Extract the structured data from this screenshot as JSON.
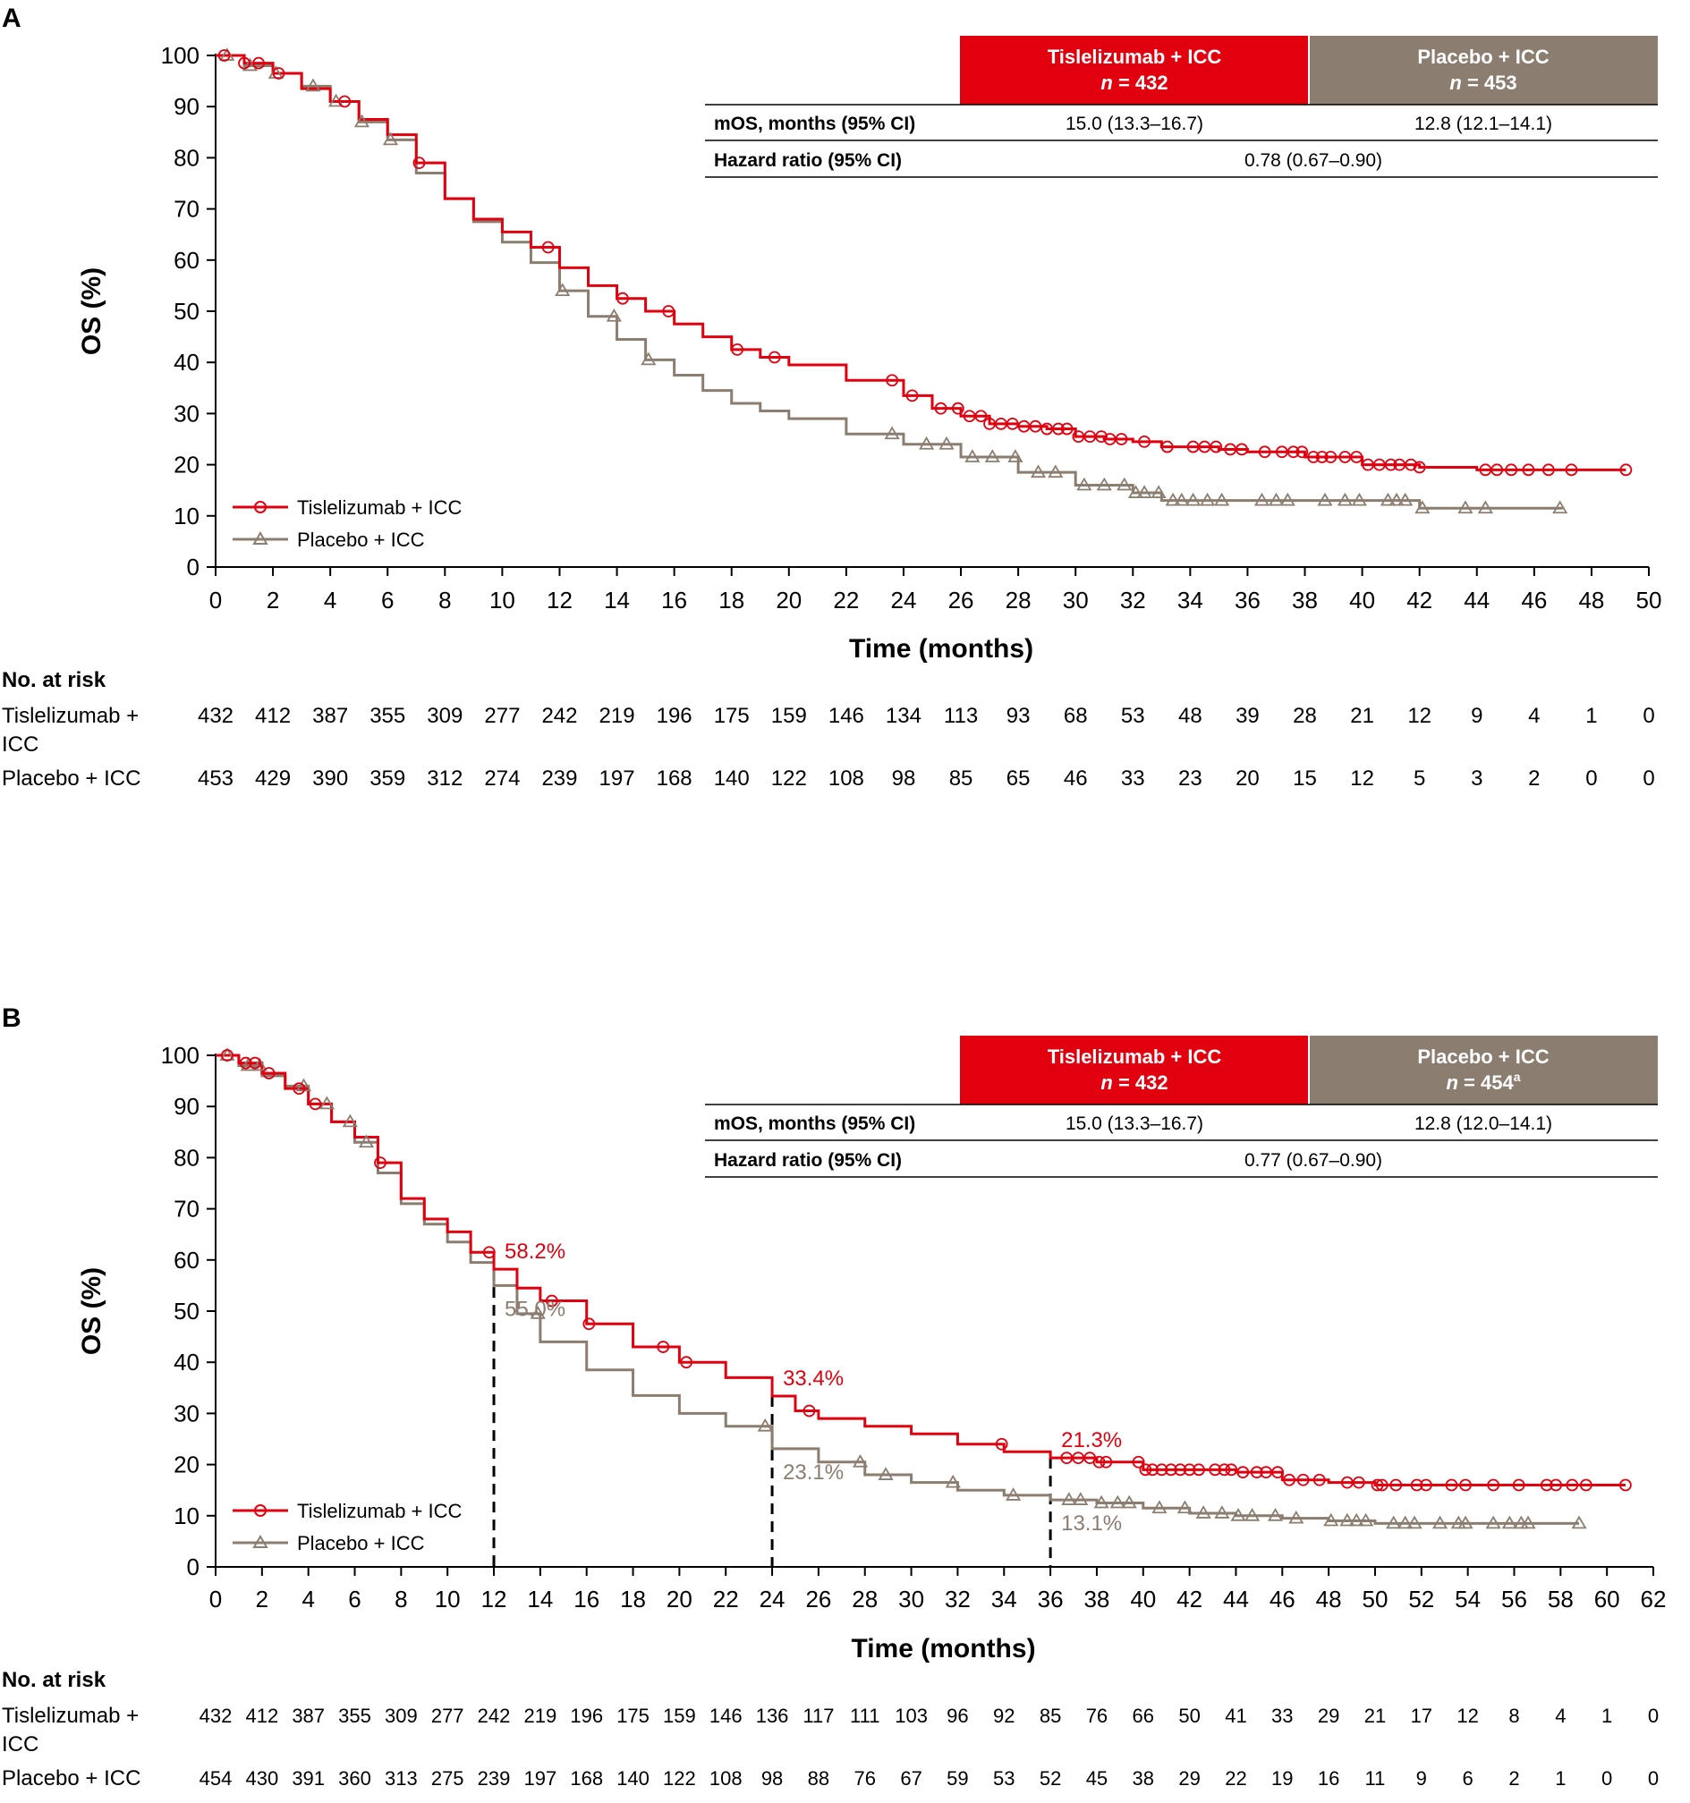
{
  "colors": {
    "tis": "#e2000f",
    "pla": "#8b7d6f",
    "axis": "#000000"
  },
  "panels": [
    {
      "panel_label": "A",
      "table": {
        "tis_header": "Tislelizumab + ICC",
        "tis_n_label": "n",
        "tis_n_value": " = 432",
        "tis_n_sup": "",
        "pla_header": "Placebo + ICC",
        "pla_n_label": "n",
        "pla_n_value": " = 453",
        "pla_n_sup": "",
        "mos_label": "mOS, months (95% CI)",
        "mos_tis": "15.0 (13.3–16.7)",
        "mos_pla": "12.8 (12.1–14.1)",
        "hr_label": "Hazard ratio (95% CI)",
        "hr_value": "0.78 (0.67–0.90)"
      },
      "legend": {
        "tis": "Tislelizumab + ICC",
        "pla": "Placebo + ICC"
      },
      "risk": {
        "title": "No. at risk",
        "tis_label_1": "Tislelizumab +",
        "tis_label_2": "ICC",
        "pla_label": "Placebo + ICC"
      }
    },
    {
      "panel_label": "B",
      "table": {
        "tis_header": "Tislelizumab + ICC",
        "tis_n_label": "n",
        "tis_n_value": " = 432",
        "tis_n_sup": "",
        "pla_header": "Placebo + ICC",
        "pla_n_label": "n",
        "pla_n_value": " = 454",
        "pla_n_sup": "a",
        "mos_label": "mOS, months (95% CI)",
        "mos_tis": "15.0 (13.3–16.7)",
        "mos_pla": "12.8 (12.0–14.1)",
        "hr_label": "Hazard ratio (95% CI)",
        "hr_value": "0.77 (0.67–0.90)"
      },
      "legend": {
        "tis": "Tislelizumab + ICC",
        "pla": "Placebo + ICC"
      },
      "risk": {
        "title": "No. at risk",
        "tis_label_1": "Tislelizumab +",
        "tis_label_2": "ICC",
        "pla_label": "Placebo + ICC"
      }
    }
  ],
  "chart_data": [
    {
      "type": "line",
      "title": "A",
      "xlabel": "Time (months)",
      "ylabel": "OS (%)",
      "xlim": [
        0,
        50
      ],
      "ylim": [
        0,
        100
      ],
      "xticks": [
        0,
        2,
        4,
        6,
        8,
        10,
        12,
        14,
        16,
        18,
        20,
        22,
        24,
        26,
        28,
        30,
        32,
        34,
        36,
        38,
        40,
        42,
        44,
        46,
        48,
        50
      ],
      "yticks": [
        0,
        10,
        20,
        30,
        40,
        50,
        60,
        70,
        80,
        90,
        100
      ],
      "series": [
        {
          "name": "Tislelizumab + ICC",
          "x": [
            0,
            1,
            2,
            3,
            4,
            5,
            6,
            7,
            8,
            9,
            10,
            11,
            12,
            13,
            14,
            15,
            16,
            17,
            18,
            19,
            20,
            22,
            24,
            25,
            26,
            27,
            28,
            29,
            30,
            31,
            32,
            33,
            34,
            35,
            36,
            38,
            40,
            42,
            44,
            46,
            48,
            49.2
          ],
          "y": [
            100,
            98.5,
            96.5,
            93.5,
            91,
            87.5,
            84.5,
            79,
            72,
            68,
            65.5,
            62.5,
            58.5,
            55,
            52.5,
            50,
            47.5,
            45,
            42.5,
            41,
            39.5,
            36.5,
            33.5,
            31,
            29.5,
            28,
            27.5,
            27,
            25.5,
            25,
            24.5,
            23.5,
            23.5,
            23,
            22.5,
            21.5,
            20,
            19.5,
            19,
            19,
            19,
            19
          ]
        },
        {
          "name": "Placebo + ICC",
          "x": [
            0,
            1,
            2,
            3,
            4,
            5,
            6,
            7,
            8,
            9,
            10,
            11,
            12,
            13,
            14,
            15,
            16,
            17,
            18,
            19,
            20,
            22,
            24,
            26,
            28,
            30,
            32,
            33,
            34,
            36,
            38,
            40,
            42,
            44,
            46,
            47
          ],
          "y": [
            100,
            98,
            96.5,
            94,
            91,
            87,
            83.5,
            77,
            72,
            67.5,
            63.5,
            59.5,
            54,
            49,
            44.5,
            40.5,
            37.5,
            34.5,
            32,
            30.5,
            29,
            26,
            24,
            21.5,
            18.5,
            16,
            14.5,
            13,
            13,
            13,
            13,
            13,
            11.5,
            11.5,
            11.5,
            11.5
          ]
        }
      ],
      "tis_censor_x": [
        0.3,
        1,
        1.5,
        2.2,
        4.5,
        7.1,
        11.6,
        14.2,
        15.8,
        18.2,
        19.5,
        23.6,
        24.3,
        25.3,
        25.9,
        26.3,
        26.7,
        27,
        27.4,
        27.8,
        28.2,
        28.6,
        29,
        29.4,
        29.7,
        30.1,
        30.5,
        30.9,
        31.2,
        31.6,
        32.4,
        33.2,
        34.1,
        34.5,
        34.9,
        35.4,
        35.8,
        36.6,
        37.2,
        37.6,
        37.9,
        38.3,
        38.6,
        38.9,
        39.4,
        39.8,
        40.2,
        40.6,
        41,
        41.3,
        41.7,
        42,
        44.3,
        44.7,
        45.2,
        45.8,
        46.5,
        47.3,
        49.2
      ],
      "pla_censor_x": [
        0.4,
        1.2,
        2.1,
        3.4,
        4.2,
        5.1,
        6.1,
        12.1,
        13.9,
        15.1,
        23.6,
        24.8,
        25.5,
        26.4,
        27.1,
        27.9,
        28.7,
        29.3,
        30.3,
        31,
        31.7,
        32.1,
        32.4,
        32.9,
        33.4,
        33.7,
        34.1,
        34.6,
        35.1,
        36.5,
        37,
        37.4,
        38.7,
        39.4,
        39.9,
        40.9,
        41.2,
        41.5,
        42.1,
        43.6,
        44.3,
        46.9
      ],
      "risk_x": [
        0,
        2,
        4,
        6,
        8,
        10,
        12,
        14,
        16,
        18,
        20,
        22,
        24,
        26,
        28,
        30,
        32,
        34,
        36,
        38,
        40,
        42,
        44,
        46,
        48,
        50
      ],
      "risk_tis": [
        "432",
        "412",
        "387",
        "355",
        "309",
        "277",
        "242",
        "219",
        "196",
        "175",
        "159",
        "146",
        "134",
        "113",
        "93",
        "68",
        "53",
        "48",
        "39",
        "28",
        "21",
        "12",
        "9",
        "4",
        "1",
        "0"
      ],
      "risk_pla": [
        "453",
        "429",
        "390",
        "359",
        "312",
        "274",
        "239",
        "197",
        "168",
        "140",
        "122",
        "108",
        "98",
        "85",
        "65",
        "46",
        "33",
        "23",
        "20",
        "15",
        "12",
        "5",
        "3",
        "2",
        "0",
        "0"
      ],
      "annotations": []
    },
    {
      "type": "line",
      "title": "B",
      "xlabel": "Time (months)",
      "ylabel": "OS (%)",
      "xlim": [
        0,
        62
      ],
      "ylim": [
        0,
        100
      ],
      "xticks": [
        0,
        2,
        4,
        6,
        8,
        10,
        12,
        14,
        16,
        18,
        20,
        22,
        24,
        26,
        28,
        30,
        32,
        34,
        36,
        38,
        40,
        42,
        44,
        46,
        48,
        50,
        52,
        54,
        56,
        58,
        60,
        62
      ],
      "yticks": [
        0,
        10,
        20,
        30,
        40,
        50,
        60,
        70,
        80,
        90,
        100
      ],
      "series": [
        {
          "name": "Tislelizumab + ICC",
          "x": [
            0,
            1,
            2,
            3,
            4,
            5,
            6,
            7,
            8,
            9,
            10,
            11,
            12,
            13,
            14,
            16,
            18,
            20,
            22,
            24,
            25,
            26,
            28,
            30,
            32,
            34,
            36,
            38,
            40,
            42,
            44,
            46,
            48,
            50,
            52,
            54,
            56,
            58,
            60.8
          ],
          "y": [
            100,
            98.5,
            96.5,
            93.5,
            90.5,
            87,
            84,
            79,
            72,
            68,
            65.5,
            61.5,
            58.2,
            54.5,
            52,
            47.5,
            43,
            40,
            37,
            33.4,
            30.5,
            29,
            27.5,
            26,
            24,
            22.5,
            21.3,
            20.5,
            19,
            19,
            18.5,
            17,
            16.5,
            16,
            16,
            16,
            16,
            16,
            16
          ]
        },
        {
          "name": "Placebo + ICC",
          "x": [
            0,
            1,
            2,
            3,
            4,
            5,
            6,
            7,
            8,
            9,
            10,
            11,
            12,
            13,
            14,
            16,
            18,
            20,
            22,
            24,
            26,
            28,
            30,
            32,
            34,
            36,
            38,
            40,
            42,
            44,
            46,
            48,
            50,
            52,
            54,
            56,
            58.8
          ],
          "y": [
            100,
            98,
            96,
            94,
            90.5,
            87,
            83,
            77,
            71,
            67,
            63.5,
            59.5,
            55,
            49.5,
            44,
            38.5,
            33.5,
            30,
            27.5,
            23.1,
            20.5,
            18,
            16.5,
            15,
            14,
            13.1,
            12.5,
            11.5,
            10.5,
            10,
            9.5,
            9,
            8.5,
            8.5,
            8.5,
            8.5,
            8.5
          ]
        }
      ],
      "tis_censor_x": [
        0.5,
        1.3,
        1.7,
        2.3,
        3.6,
        4.3,
        7.1,
        11.8,
        14.5,
        16.1,
        19.3,
        20.3,
        25.6,
        33.9,
        36.7,
        37.2,
        37.7,
        38.1,
        38.4,
        39.8,
        40.1,
        40.4,
        40.8,
        41.2,
        41.6,
        42,
        42.4,
        43.1,
        43.5,
        43.8,
        44.3,
        44.9,
        45.3,
        45.8,
        46.3,
        46.9,
        47.6,
        48.8,
        49.3,
        50.1,
        50.3,
        50.9,
        51.8,
        52.2,
        53.3,
        53.9,
        55.1,
        56.2,
        57.4,
        57.8,
        58.5,
        59.1,
        60.8
      ],
      "pla_censor_x": [
        0.5,
        1.4,
        1.9,
        3.8,
        4.8,
        5.8,
        6.5,
        13.9,
        23.7,
        27.8,
        28.9,
        31.8,
        34.4,
        36.8,
        37.3,
        38.2,
        38.9,
        39.4,
        40.7,
        41.8,
        42.6,
        43.4,
        44.1,
        44.7,
        45.7,
        46.6,
        48.1,
        48.8,
        49.2,
        49.6,
        50.8,
        51.3,
        51.7,
        52.8,
        53.6,
        53.9,
        55.1,
        55.8,
        56.3,
        56.6,
        58.8
      ],
      "risk_x": [
        0,
        2,
        4,
        6,
        8,
        10,
        12,
        14,
        16,
        18,
        20,
        22,
        24,
        26,
        28,
        30,
        32,
        34,
        36,
        38,
        40,
        42,
        44,
        46,
        48,
        50,
        52,
        54,
        56,
        58,
        60,
        62
      ],
      "risk_tis": [
        "432",
        "412",
        "387",
        "355",
        "309",
        "277",
        "242",
        "219",
        "196",
        "175",
        "159",
        "146",
        "136",
        "117",
        "111",
        "103",
        "96",
        "92",
        "85",
        "76",
        "66",
        "50",
        "41",
        "33",
        "29",
        "21",
        "17",
        "12",
        "8",
        "4",
        "1",
        "0"
      ],
      "risk_pla": [
        "454",
        "430",
        "391",
        "360",
        "313",
        "275",
        "239",
        "197",
        "168",
        "140",
        "122",
        "108",
        "98",
        "88",
        "76",
        "67",
        "59",
        "53",
        "52",
        "45",
        "38",
        "29",
        "22",
        "19",
        "16",
        "11",
        "9",
        "6",
        "2",
        "1",
        "0",
        "0"
      ],
      "annotations": [
        {
          "x": 12,
          "tis_y": 58.2,
          "pla_y": 55.0,
          "tis_label": "58.2%",
          "pla_label": "55.0%"
        },
        {
          "x": 24,
          "tis_y": 33.4,
          "pla_y": 23.1,
          "tis_label": "33.4%",
          "pla_label": "23.1%"
        },
        {
          "x": 36,
          "tis_y": 21.3,
          "pla_y": 13.1,
          "tis_label": "21.3%",
          "pla_label": "13.1%"
        }
      ]
    }
  ]
}
